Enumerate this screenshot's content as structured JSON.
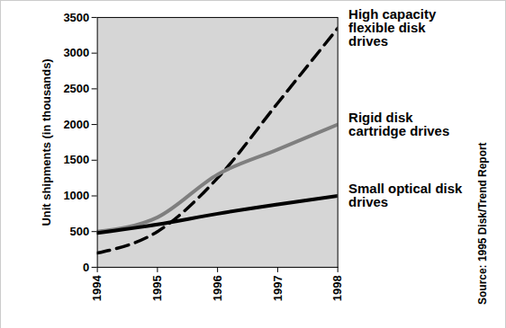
{
  "chart_data": {
    "type": "line",
    "y_label": "Unit shipments (in thousands)",
    "x": [
      1994,
      1995,
      1996,
      1997,
      1998
    ],
    "series": [
      {
        "name": "High capacity flexible disk drives",
        "color": "#000000",
        "line_style": "dashed",
        "values": [
          200,
          500,
          1250,
          2300,
          3350
        ]
      },
      {
        "name": "Rigid disk cartridge drives",
        "color": "#7f7f7f",
        "line_style": "solid",
        "values": [
          500,
          700,
          1300,
          1650,
          2000
        ]
      },
      {
        "name": "Small optical disk drives",
        "color": "#000000",
        "line_style": "solid",
        "values": [
          480,
          600,
          750,
          880,
          1000
        ]
      }
    ],
    "xlim": [
      1994,
      1998
    ],
    "xticks": [
      1994,
      1995,
      1996,
      1997,
      1998
    ],
    "ylim": [
      0,
      3500
    ],
    "yticks": [
      0,
      500,
      1000,
      1500,
      2000,
      2500,
      3000,
      3500
    ],
    "grid": false,
    "annotations": [
      "Source: 1995 Disk/Trend Report"
    ]
  }
}
